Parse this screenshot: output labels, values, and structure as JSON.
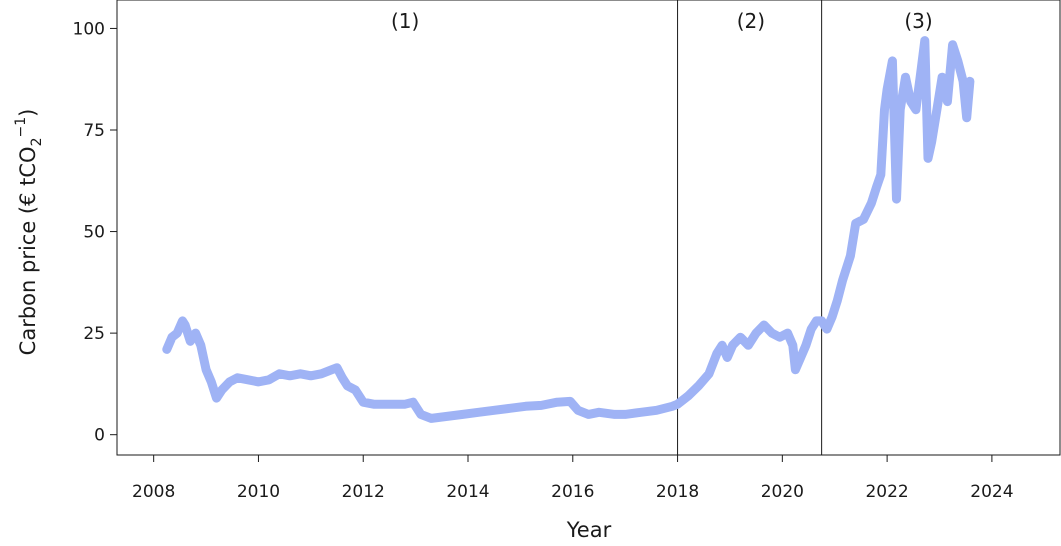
{
  "chart_data": {
    "type": "line",
    "xlabel": "Year",
    "ylabel": "Carbon price (€ tCO",
    "ylabel_sub": "2",
    "ylabel_sup": "−1",
    "ylabel_close": ")",
    "xlim": [
      2007.3,
      2025.3
    ],
    "ylim": [
      -5,
      107
    ],
    "x_ticks": [
      2008,
      2010,
      2012,
      2014,
      2016,
      2018,
      2020,
      2022,
      2024
    ],
    "x_tick_labels": [
      "2008",
      "2010",
      "2012",
      "2014",
      "2016",
      "2018",
      "2020",
      "2022",
      "2024"
    ],
    "y_ticks": [
      0,
      25,
      50,
      75,
      100
    ],
    "y_tick_labels": [
      "0",
      "25",
      "50",
      "75",
      "100"
    ],
    "grid": false,
    "line_color": "#9fb3f5",
    "vlines": [
      2018.0,
      2020.75
    ],
    "period_labels": [
      {
        "text": "(1)",
        "x": 2012.8
      },
      {
        "text": "(2)",
        "x": 2019.4
      },
      {
        "text": "(3)",
        "x": 2022.6
      }
    ],
    "series": [
      {
        "values": [
          [
            2008.25,
            21
          ],
          [
            2008.35,
            24
          ],
          [
            2008.45,
            25
          ],
          [
            2008.55,
            28
          ],
          [
            2008.6,
            27
          ],
          [
            2008.7,
            23
          ],
          [
            2008.8,
            25
          ],
          [
            2008.9,
            22
          ],
          [
            2009.0,
            16
          ],
          [
            2009.1,
            13
          ],
          [
            2009.2,
            9
          ],
          [
            2009.3,
            11
          ],
          [
            2009.45,
            13
          ],
          [
            2009.6,
            14
          ],
          [
            2009.8,
            13.5
          ],
          [
            2010.0,
            13
          ],
          [
            2010.2,
            13.5
          ],
          [
            2010.4,
            15
          ],
          [
            2010.6,
            14.5
          ],
          [
            2010.8,
            15
          ],
          [
            2011.0,
            14.5
          ],
          [
            2011.2,
            15
          ],
          [
            2011.4,
            16
          ],
          [
            2011.5,
            16.5
          ],
          [
            2011.6,
            14
          ],
          [
            2011.7,
            12
          ],
          [
            2011.85,
            11
          ],
          [
            2012.0,
            8
          ],
          [
            2012.2,
            7.5
          ],
          [
            2012.5,
            7.5
          ],
          [
            2012.8,
            7.5
          ],
          [
            2012.95,
            8
          ],
          [
            2013.1,
            5
          ],
          [
            2013.3,
            4
          ],
          [
            2013.6,
            4.5
          ],
          [
            2013.9,
            5
          ],
          [
            2014.2,
            5.5
          ],
          [
            2014.5,
            6
          ],
          [
            2014.8,
            6.5
          ],
          [
            2015.1,
            7
          ],
          [
            2015.4,
            7.2
          ],
          [
            2015.7,
            8
          ],
          [
            2015.95,
            8.2
          ],
          [
            2016.1,
            6
          ],
          [
            2016.3,
            5
          ],
          [
            2016.5,
            5.5
          ],
          [
            2016.8,
            5
          ],
          [
            2017.0,
            5
          ],
          [
            2017.3,
            5.5
          ],
          [
            2017.6,
            6
          ],
          [
            2017.9,
            7
          ],
          [
            2018.0,
            7.5
          ],
          [
            2018.2,
            9.5
          ],
          [
            2018.4,
            12
          ],
          [
            2018.6,
            15
          ],
          [
            2018.75,
            20
          ],
          [
            2018.85,
            22
          ],
          [
            2018.95,
            19
          ],
          [
            2019.05,
            22
          ],
          [
            2019.2,
            24
          ],
          [
            2019.35,
            22
          ],
          [
            2019.5,
            25
          ],
          [
            2019.65,
            27
          ],
          [
            2019.8,
            25
          ],
          [
            2019.95,
            24
          ],
          [
            2020.1,
            25
          ],
          [
            2020.2,
            22
          ],
          [
            2020.25,
            16
          ],
          [
            2020.35,
            19
          ],
          [
            2020.45,
            22
          ],
          [
            2020.55,
            26
          ],
          [
            2020.65,
            28
          ],
          [
            2020.75,
            28
          ],
          [
            2020.85,
            26
          ],
          [
            2020.95,
            29
          ],
          [
            2021.05,
            33
          ],
          [
            2021.15,
            38
          ],
          [
            2021.3,
            44
          ],
          [
            2021.4,
            52
          ],
          [
            2021.55,
            53
          ],
          [
            2021.7,
            57
          ],
          [
            2021.8,
            61
          ],
          [
            2021.88,
            64
          ],
          [
            2021.95,
            80
          ],
          [
            2022.0,
            85
          ],
          [
            2022.1,
            92
          ],
          [
            2022.18,
            58
          ],
          [
            2022.25,
            80
          ],
          [
            2022.35,
            88
          ],
          [
            2022.45,
            82
          ],
          [
            2022.55,
            80
          ],
          [
            2022.65,
            90
          ],
          [
            2022.72,
            97
          ],
          [
            2022.78,
            68
          ],
          [
            2022.85,
            72
          ],
          [
            2022.95,
            80
          ],
          [
            2023.05,
            88
          ],
          [
            2023.15,
            82
          ],
          [
            2023.25,
            96
          ],
          [
            2023.35,
            92
          ],
          [
            2023.45,
            87
          ],
          [
            2023.52,
            78
          ],
          [
            2023.58,
            87
          ]
        ]
      }
    ]
  }
}
